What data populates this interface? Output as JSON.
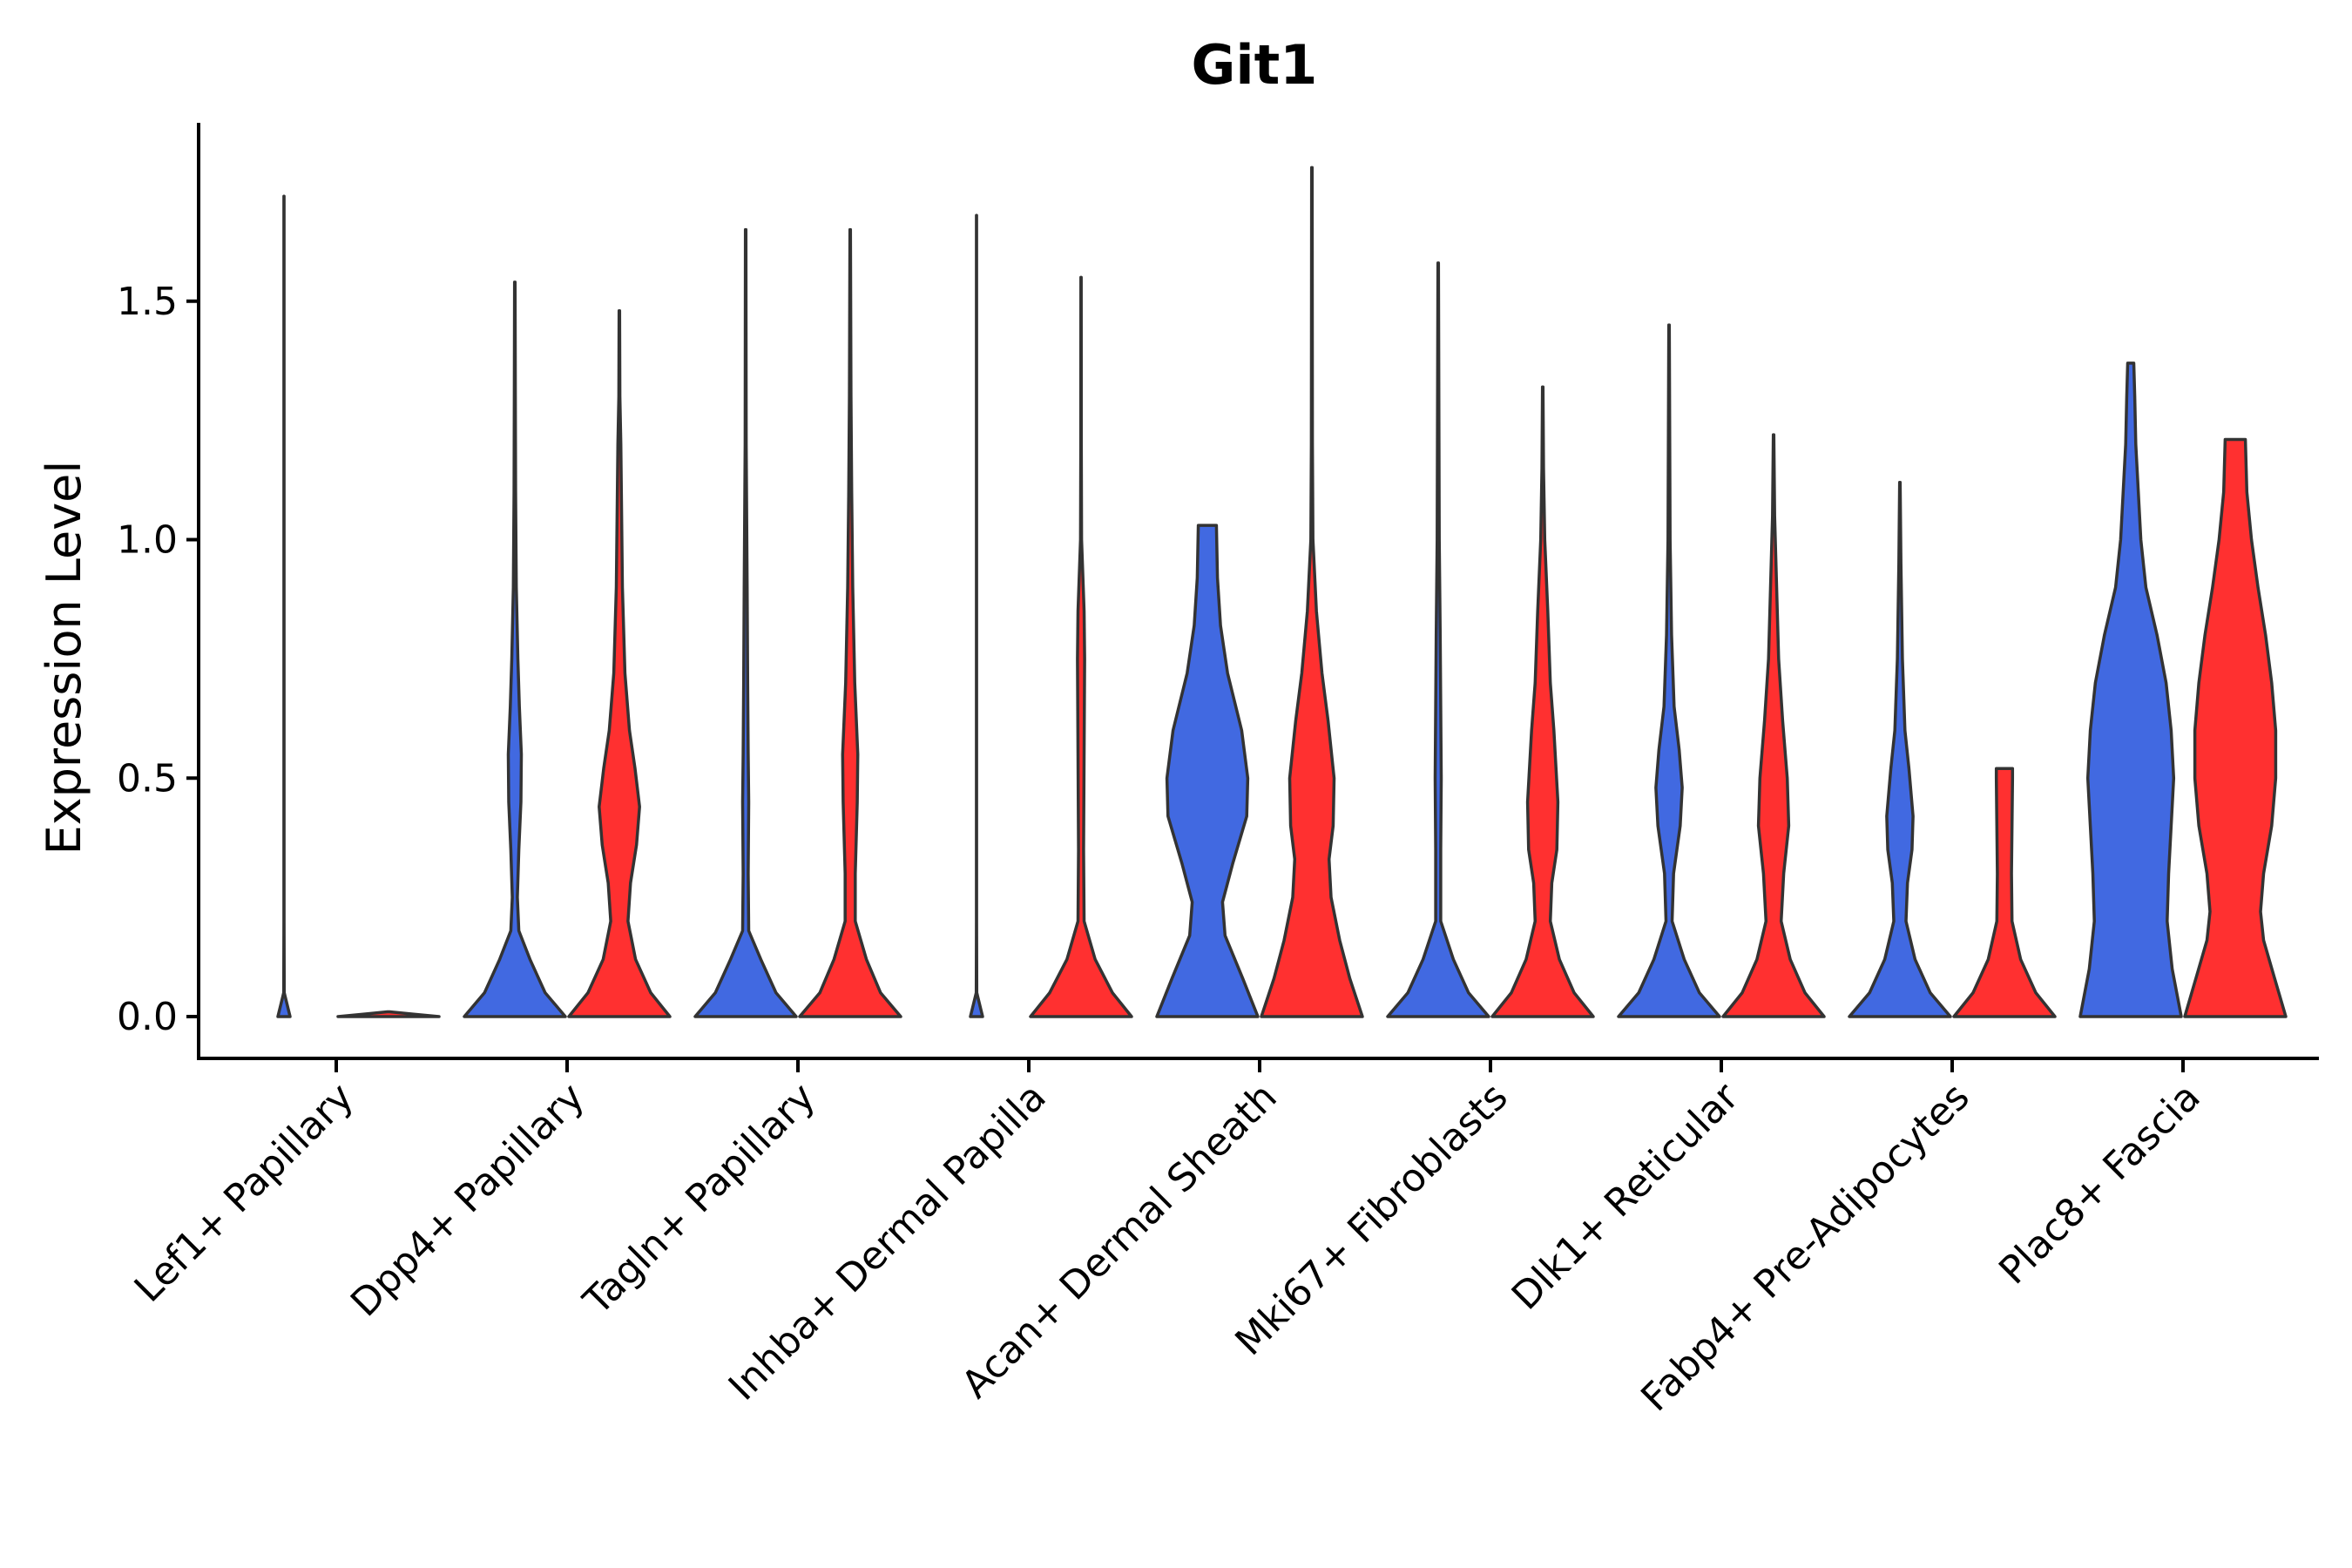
{
  "chart_data": {
    "type": "violin",
    "title": "Git1",
    "xlabel": "",
    "ylabel": "Expression Level",
    "ylim": [
      -0.09,
      1.88
    ],
    "yticks": [
      0.0,
      0.5,
      1.0,
      1.5
    ],
    "ytick_labels": [
      "0.0",
      "0.5",
      "1.0",
      "1.5"
    ],
    "legend": "none",
    "series_colors": {
      "group1": "#4169E1",
      "group2": "#FF3030"
    },
    "categories": [
      "Lef1+ Papillary",
      "Dpp4+ Papillary",
      "Tagln+ Papillary",
      "Inhba+ Dermal Papilla",
      "Acan+ Dermal Sheath",
      "Mki67+ Fibroblasts",
      "Dlk1+ Reticular",
      "Fabp4+ Pre-Adipocytes",
      "Plac8+ Fascia"
    ],
    "violins": [
      {
        "category": "Lef1+ Papillary",
        "group": "group1",
        "max": 1.72,
        "profile": [
          [
            0,
            0.12
          ],
          [
            0.05,
            0.005
          ],
          [
            0.2,
            0.002
          ],
          [
            1.0,
            0.002
          ],
          [
            1.72,
            0.002
          ]
        ]
      },
      {
        "category": "Lef1+ Papillary",
        "group": "group2",
        "max": 0.01,
        "profile": [
          [
            0,
            1.0
          ],
          [
            0.005,
            0.5
          ],
          [
            0.01,
            0.02
          ]
        ]
      },
      {
        "category": "Dpp4+ Papillary",
        "group": "group1",
        "max": 1.54,
        "profile": [
          [
            0,
            1.0
          ],
          [
            0.05,
            0.6
          ],
          [
            0.12,
            0.3
          ],
          [
            0.18,
            0.08
          ],
          [
            0.25,
            0.05
          ],
          [
            0.35,
            0.08
          ],
          [
            0.45,
            0.12
          ],
          [
            0.55,
            0.13
          ],
          [
            0.65,
            0.09
          ],
          [
            0.75,
            0.06
          ],
          [
            0.9,
            0.03
          ],
          [
            1.1,
            0.015
          ],
          [
            1.3,
            0.01
          ],
          [
            1.54,
            0.005
          ]
        ]
      },
      {
        "category": "Dpp4+ Papillary",
        "group": "group2",
        "max": 1.48,
        "profile": [
          [
            0,
            1.0
          ],
          [
            0.05,
            0.62
          ],
          [
            0.12,
            0.32
          ],
          [
            0.2,
            0.17
          ],
          [
            0.28,
            0.22
          ],
          [
            0.36,
            0.34
          ],
          [
            0.44,
            0.4
          ],
          [
            0.52,
            0.31
          ],
          [
            0.6,
            0.2
          ],
          [
            0.72,
            0.11
          ],
          [
            0.9,
            0.06
          ],
          [
            1.1,
            0.04
          ],
          [
            1.2,
            0.03
          ],
          [
            1.3,
            0.01
          ],
          [
            1.48,
            0.005
          ]
        ]
      },
      {
        "category": "Tagln+ Papillary",
        "group": "group1",
        "max": 1.65,
        "profile": [
          [
            0,
            1.0
          ],
          [
            0.05,
            0.6
          ],
          [
            0.12,
            0.3
          ],
          [
            0.18,
            0.06
          ],
          [
            0.3,
            0.05
          ],
          [
            0.45,
            0.06
          ],
          [
            0.55,
            0.05
          ],
          [
            0.7,
            0.04
          ],
          [
            0.9,
            0.03
          ],
          [
            1.2,
            0.01
          ],
          [
            1.65,
            0.005
          ]
        ]
      },
      {
        "category": "Tagln+ Papillary",
        "group": "group2",
        "max": 1.65,
        "profile": [
          [
            0,
            1.0
          ],
          [
            0.05,
            0.6
          ],
          [
            0.12,
            0.32
          ],
          [
            0.2,
            0.1
          ],
          [
            0.3,
            0.1
          ],
          [
            0.45,
            0.14
          ],
          [
            0.55,
            0.15
          ],
          [
            0.7,
            0.09
          ],
          [
            0.9,
            0.05
          ],
          [
            1.1,
            0.03
          ],
          [
            1.3,
            0.015
          ],
          [
            1.65,
            0.005
          ]
        ]
      },
      {
        "category": "Inhba+ Dermal Papilla",
        "group": "group1",
        "max": 1.68,
        "profile": [
          [
            0,
            0.12
          ],
          [
            0.05,
            0.005
          ],
          [
            0.2,
            0.002
          ],
          [
            1.0,
            0.002
          ],
          [
            1.68,
            0.002
          ]
        ]
      },
      {
        "category": "Inhba+ Dermal Papilla",
        "group": "group2",
        "max": 1.55,
        "profile": [
          [
            0,
            1.0
          ],
          [
            0.05,
            0.62
          ],
          [
            0.12,
            0.28
          ],
          [
            0.2,
            0.06
          ],
          [
            0.35,
            0.05
          ],
          [
            0.55,
            0.06
          ],
          [
            0.75,
            0.07
          ],
          [
            0.85,
            0.06
          ],
          [
            1.0,
            0.01
          ],
          [
            1.2,
            0.005
          ],
          [
            1.55,
            0.003
          ]
        ]
      },
      {
        "category": "Acan+ Dermal Sheath",
        "group": "group1",
        "max": 1.03,
        "profile": [
          [
            0,
            1.0
          ],
          [
            0.08,
            0.7
          ],
          [
            0.17,
            0.35
          ],
          [
            0.24,
            0.3
          ],
          [
            0.32,
            0.5
          ],
          [
            0.42,
            0.78
          ],
          [
            0.5,
            0.8
          ],
          [
            0.6,
            0.68
          ],
          [
            0.72,
            0.4
          ],
          [
            0.82,
            0.26
          ],
          [
            0.92,
            0.2
          ],
          [
            1.03,
            0.18
          ]
        ]
      },
      {
        "category": "Acan+ Dermal Sheath",
        "group": "group2",
        "max": 1.78,
        "profile": [
          [
            0,
            1.0
          ],
          [
            0.08,
            0.75
          ],
          [
            0.16,
            0.55
          ],
          [
            0.25,
            0.38
          ],
          [
            0.33,
            0.34
          ],
          [
            0.4,
            0.42
          ],
          [
            0.5,
            0.44
          ],
          [
            0.62,
            0.32
          ],
          [
            0.72,
            0.2
          ],
          [
            0.85,
            0.09
          ],
          [
            1.0,
            0.02
          ],
          [
            1.2,
            0.01
          ],
          [
            1.78,
            0.005
          ]
        ]
      },
      {
        "category": "Mki67+ Fibroblasts",
        "group": "group1",
        "max": 1.58,
        "profile": [
          [
            0,
            1.0
          ],
          [
            0.05,
            0.6
          ],
          [
            0.12,
            0.3
          ],
          [
            0.2,
            0.05
          ],
          [
            0.35,
            0.05
          ],
          [
            0.5,
            0.06
          ],
          [
            0.65,
            0.05
          ],
          [
            0.8,
            0.04
          ],
          [
            1.0,
            0.02
          ],
          [
            1.58,
            0.005
          ]
        ]
      },
      {
        "category": "Mki67+ Fibroblasts",
        "group": "group2",
        "max": 1.32,
        "profile": [
          [
            0,
            1.0
          ],
          [
            0.05,
            0.62
          ],
          [
            0.12,
            0.33
          ],
          [
            0.2,
            0.15
          ],
          [
            0.28,
            0.18
          ],
          [
            0.35,
            0.28
          ],
          [
            0.45,
            0.3
          ],
          [
            0.6,
            0.22
          ],
          [
            0.7,
            0.15
          ],
          [
            0.85,
            0.1
          ],
          [
            1.0,
            0.04
          ],
          [
            1.15,
            0.015
          ],
          [
            1.32,
            0.005
          ]
        ]
      },
      {
        "category": "Dlk1+ Reticular",
        "group": "group1",
        "max": 1.45,
        "profile": [
          [
            0,
            1.0
          ],
          [
            0.05,
            0.6
          ],
          [
            0.12,
            0.3
          ],
          [
            0.2,
            0.06
          ],
          [
            0.3,
            0.09
          ],
          [
            0.4,
            0.22
          ],
          [
            0.48,
            0.26
          ],
          [
            0.56,
            0.2
          ],
          [
            0.65,
            0.1
          ],
          [
            0.8,
            0.05
          ],
          [
            1.0,
            0.02
          ],
          [
            1.45,
            0.005
          ]
        ]
      },
      {
        "category": "Dlk1+ Reticular",
        "group": "group2",
        "max": 1.22,
        "profile": [
          [
            0,
            1.0
          ],
          [
            0.05,
            0.62
          ],
          [
            0.12,
            0.33
          ],
          [
            0.2,
            0.15
          ],
          [
            0.3,
            0.2
          ],
          [
            0.4,
            0.3
          ],
          [
            0.5,
            0.27
          ],
          [
            0.62,
            0.18
          ],
          [
            0.75,
            0.1
          ],
          [
            0.9,
            0.06
          ],
          [
            1.05,
            0.02
          ],
          [
            1.22,
            0.005
          ]
        ]
      },
      {
        "category": "Fabp4+ Pre-Adipocytes",
        "group": "group1",
        "max": 1.12,
        "profile": [
          [
            0,
            1.0
          ],
          [
            0.05,
            0.6
          ],
          [
            0.12,
            0.3
          ],
          [
            0.2,
            0.12
          ],
          [
            0.28,
            0.15
          ],
          [
            0.35,
            0.24
          ],
          [
            0.42,
            0.26
          ],
          [
            0.52,
            0.18
          ],
          [
            0.6,
            0.1
          ],
          [
            0.75,
            0.05
          ],
          [
            0.95,
            0.02
          ],
          [
            1.12,
            0.005
          ]
        ]
      },
      {
        "category": "Fabp4+ Pre-Adipocytes",
        "group": "group2",
        "max": 0.52,
        "profile": [
          [
            0,
            1.0
          ],
          [
            0.05,
            0.62
          ],
          [
            0.12,
            0.32
          ],
          [
            0.2,
            0.15
          ],
          [
            0.3,
            0.14
          ],
          [
            0.4,
            0.15
          ],
          [
            0.5,
            0.16
          ],
          [
            0.52,
            0.16
          ]
        ]
      },
      {
        "category": "Plac8+ Fascia",
        "group": "group1",
        "max": 1.37,
        "profile": [
          [
            0,
            1.0
          ],
          [
            0.1,
            0.82
          ],
          [
            0.2,
            0.72
          ],
          [
            0.3,
            0.75
          ],
          [
            0.4,
            0.8
          ],
          [
            0.5,
            0.85
          ],
          [
            0.6,
            0.8
          ],
          [
            0.7,
            0.7
          ],
          [
            0.8,
            0.52
          ],
          [
            0.9,
            0.3
          ],
          [
            1.0,
            0.2
          ],
          [
            1.1,
            0.15
          ],
          [
            1.2,
            0.1
          ],
          [
            1.3,
            0.08
          ],
          [
            1.37,
            0.06
          ]
        ]
      },
      {
        "category": "Plac8+ Fascia",
        "group": "group2",
        "max": 1.21,
        "profile": [
          [
            0,
            1.0
          ],
          [
            0.08,
            0.78
          ],
          [
            0.16,
            0.56
          ],
          [
            0.22,
            0.5
          ],
          [
            0.3,
            0.56
          ],
          [
            0.4,
            0.72
          ],
          [
            0.5,
            0.8
          ],
          [
            0.6,
            0.8
          ],
          [
            0.7,
            0.72
          ],
          [
            0.8,
            0.6
          ],
          [
            0.9,
            0.45
          ],
          [
            1.0,
            0.32
          ],
          [
            1.1,
            0.23
          ],
          [
            1.21,
            0.2
          ]
        ]
      }
    ]
  }
}
